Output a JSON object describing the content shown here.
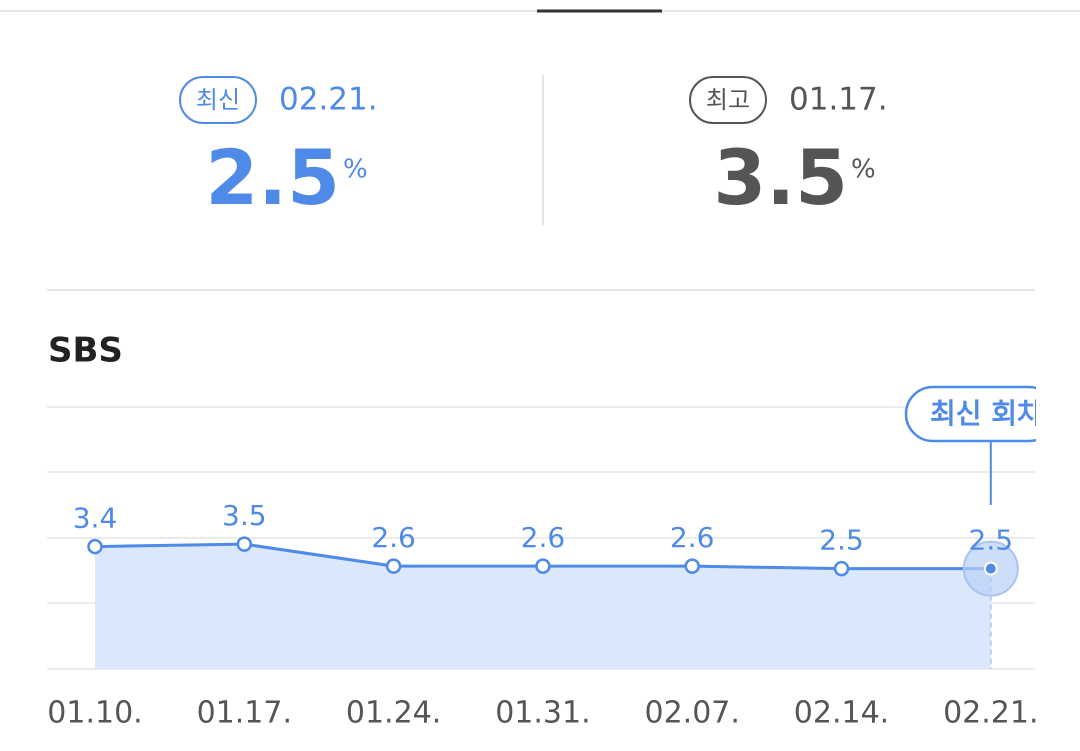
{
  "summary": {
    "latest": {
      "badge": "최신",
      "date": "02.21.",
      "value": 2.5,
      "unit": "%"
    },
    "best": {
      "badge": "최고",
      "date": "01.17.",
      "value": 3.5,
      "unit": "%"
    }
  },
  "chart_data": {
    "type": "area",
    "title": "SBS",
    "annotation": "최신 회차",
    "color": "#4f8ae8",
    "fill": "#dbe7fb",
    "categories": [
      "01.10.",
      "01.17.",
      "01.24.",
      "01.31.",
      "02.07.",
      "02.14.",
      "02.21."
    ],
    "values": [
      3.4,
      3.5,
      2.6,
      2.6,
      2.6,
      2.5,
      2.5
    ],
    "ylim": [
      -1.6,
      9.1
    ]
  }
}
